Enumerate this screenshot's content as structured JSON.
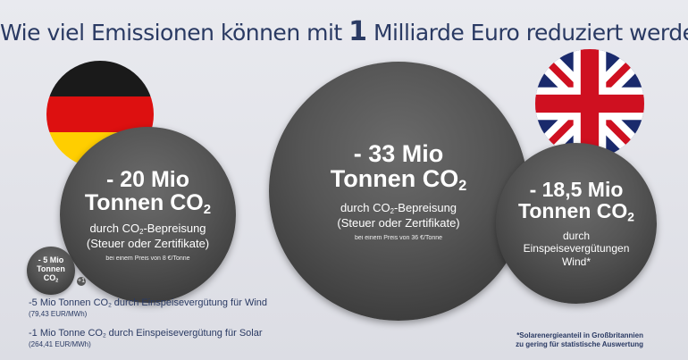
{
  "title": {
    "part1": "Wie viel Emissionen können mit ",
    "highlight": "1",
    "part2": " Milliarde Euro reduziert werden?"
  },
  "germany": {
    "flag_colors": [
      "#1a1a1a",
      "#dd1010",
      "#ffce00"
    ],
    "main_line1": "- 20 Mio",
    "main_line2": "Tonnen CO",
    "main_sub2": "2",
    "desc_prefix": "durch CO",
    "desc_sub": "2",
    "desc_suffix": "-Bepreisung",
    "desc_line2": "(Steuer oder Zertifikate)",
    "price_note": "bei einem Preis von 8 €/Tonne"
  },
  "small_bubble": {
    "line1": "- 5 Mio",
    "line2": "Tonnen",
    "line3": "CO",
    "line3_sub": "2",
    "plus_mark": "+1"
  },
  "center": {
    "main_line1": "- 33 Mio",
    "main_line2": "Tonnen CO",
    "main_sub2": "2",
    "desc_prefix": "durch CO",
    "desc_sub": "2",
    "desc_suffix": "-Bepreisung",
    "desc_line2": "(Steuer oder Zertifikate)",
    "price_note": "bei einem Preis von 36 €/Tonne"
  },
  "uk": {
    "flag_colors": [
      "#1a2a6c",
      "#ffffff",
      "#cf1020"
    ],
    "main_line1": "- 18,5 Mio",
    "main_line2": "Tonnen CO",
    "main_sub2": "2",
    "desc_line1": "durch",
    "desc_line2": "Einspeisevergütungen",
    "desc_line3": "Wind*"
  },
  "legend": {
    "wind_prefix": "-5 Mio Tonnen CO",
    "wind_sub": "2",
    "wind_suffix": " durch Einspeisevergütung für Wind",
    "wind_price": "(79,43 EUR/MWh)",
    "solar_prefix": "-1 Mio Tonne CO",
    "solar_sub": "2",
    "solar_suffix": " durch Einspeisevergütung für Solar",
    "solar_price": "(264,41 EUR/MWh)"
  },
  "footnote": {
    "line1": "*Solarenergieanteil in Großbritannien",
    "line2": "zu gering für statistische Auswertung"
  }
}
